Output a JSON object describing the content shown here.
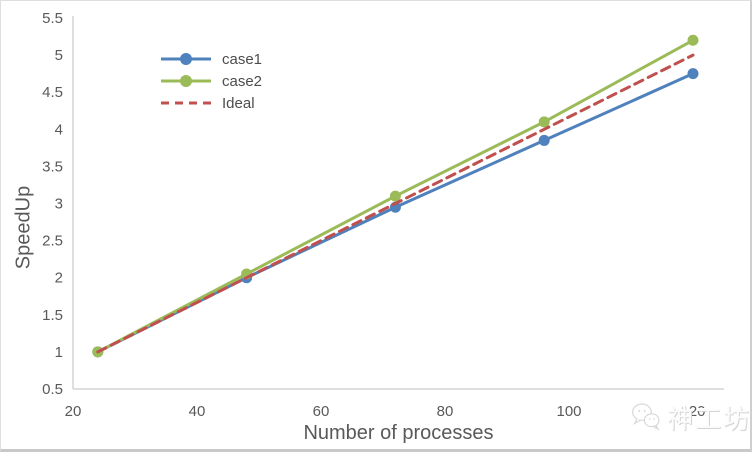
{
  "chart_data": {
    "type": "line",
    "title": "",
    "xlabel": "Number of processes",
    "ylabel": "SpeedUp",
    "x": [
      24,
      48,
      72,
      96,
      120
    ],
    "series": [
      {
        "name": "case1",
        "values": [
          1,
          2,
          2.95,
          3.85,
          4.75
        ],
        "color": "#4F81BD",
        "marker": "circle",
        "style": "solid"
      },
      {
        "name": "case2",
        "values": [
          1,
          2.05,
          3.1,
          4.1,
          5.2
        ],
        "color": "#9BBB59",
        "marker": "circle",
        "style": "solid"
      },
      {
        "name": "Ideal",
        "values": [
          1,
          2,
          3,
          4,
          5
        ],
        "color": "#C0504D",
        "marker": "none",
        "style": "dashed"
      }
    ],
    "xlim": [
      20,
      125
    ],
    "ylim": [
      0.5,
      5.5
    ],
    "x_ticks": [
      "20",
      "40",
      "60",
      "80",
      "100",
      "120"
    ],
    "x_tick_values": [
      20,
      40,
      60,
      80,
      100,
      120
    ],
    "y_ticks": [
      "0.5",
      "1",
      "1.5",
      "2",
      "2.5",
      "3",
      "3.5",
      "4",
      "4.5",
      "5",
      "5.5"
    ],
    "y_tick_values": [
      0.5,
      1,
      1.5,
      2,
      2.5,
      3,
      3.5,
      4,
      4.5,
      5,
      5.5
    ],
    "grid": false,
    "legend_position": "upper-left-inside"
  },
  "style": {
    "axis_line_color": "#BFBFBF",
    "tick_text_color": "#595959",
    "line_width": 3,
    "marker_radius": 5.5,
    "dash_pattern": "9 6"
  },
  "watermark": {
    "icon": "wechat-bubbles-icon",
    "text": "神工坊"
  }
}
